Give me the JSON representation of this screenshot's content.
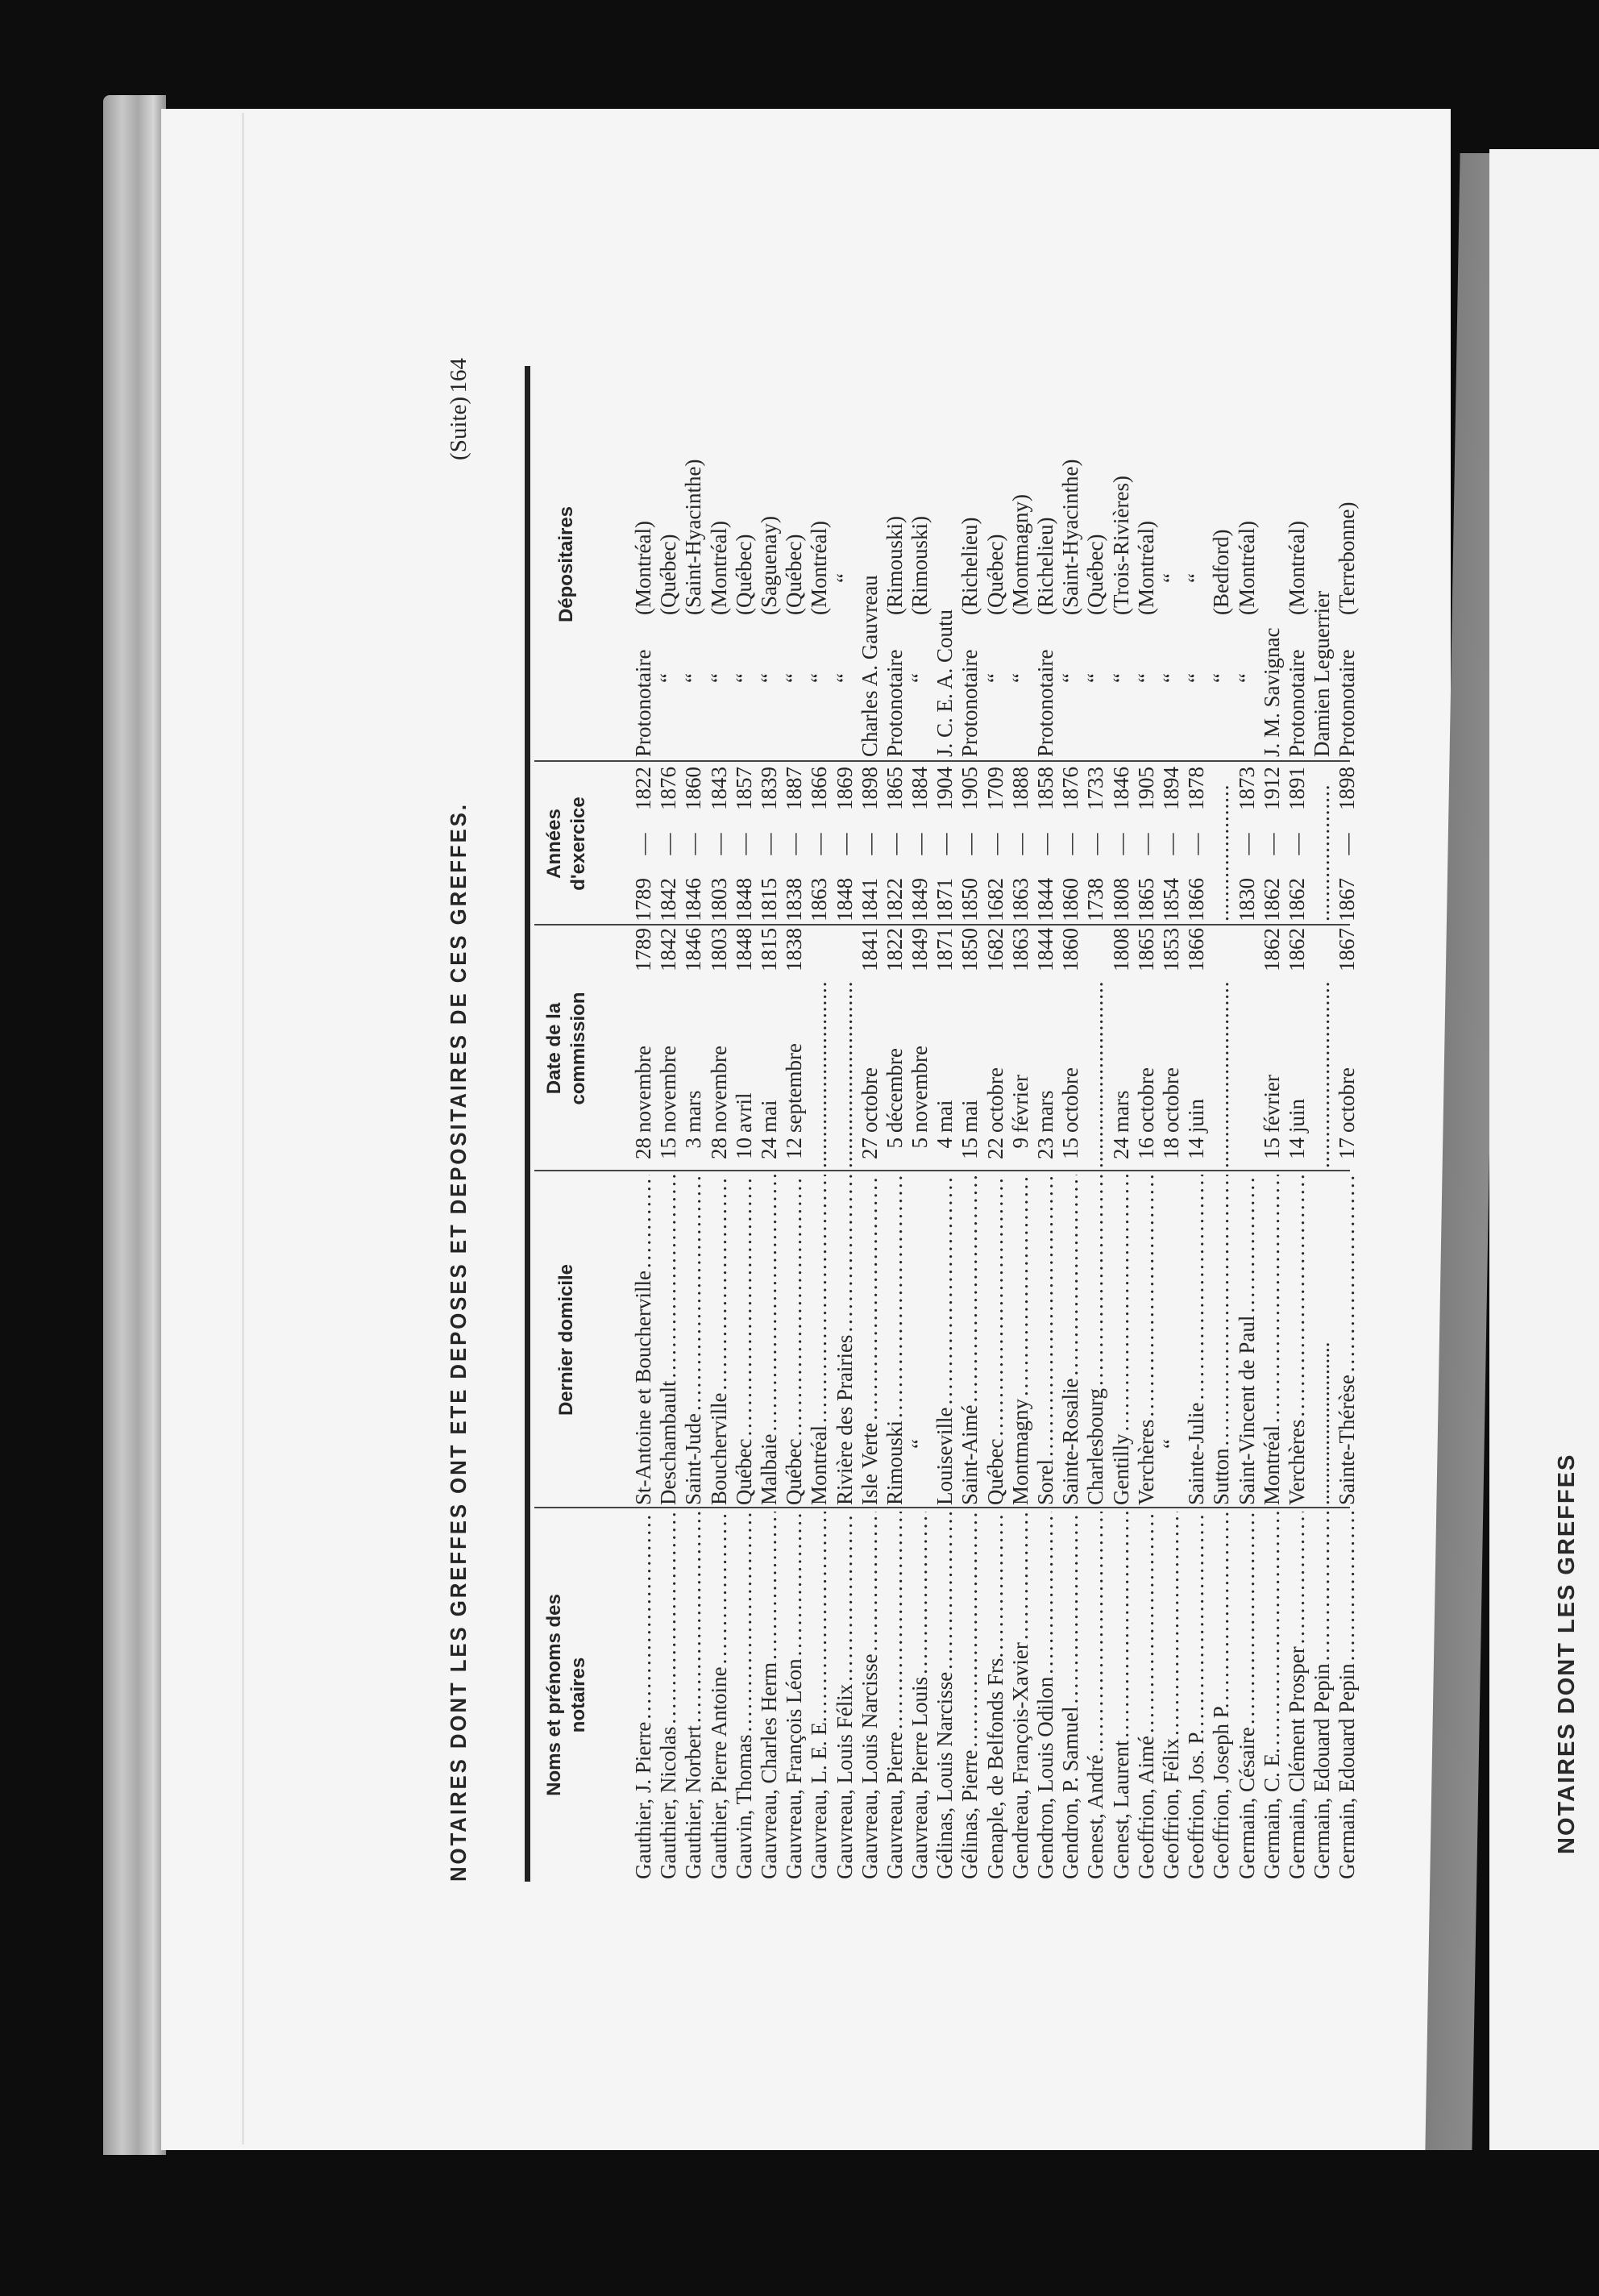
{
  "title": {
    "main": "NOTAIRES DONT LES GREFFES ONT ETE DEPOSES ET DEPOSITAIRES DE CES GREFFES.",
    "suite": "(Suite)",
    "page_number": "164"
  },
  "headers": {
    "name_line1": "Noms et prénoms des",
    "name_line2": "notaires",
    "domicile": "Dernier domicile",
    "date_line1": "Date de la",
    "date_line2": "commission",
    "years_line1": "Années",
    "years_line2": "d'exercice",
    "depositaires": "Dépositaires"
  },
  "rows": [
    {
      "name": "Gauthier, J. Pierre",
      "domicile": "St-Antoine et Boucherville",
      "day": "28",
      "month": "novembre",
      "year": "1789",
      "start": "1789",
      "end": "1822",
      "dep_a": "Protonotaire",
      "dep_b": "(Montréal)"
    },
    {
      "name": "Gauthier, Nicolas",
      "domicile": "Deschambault",
      "day": "15",
      "month": "novembre",
      "year": "1842",
      "start": "1842",
      "end": "1876",
      "dep_a": "“",
      "dep_b": "(Québec)"
    },
    {
      "name": "Gauthier, Norbert",
      "domicile": "Saint-Jude",
      "day": "3",
      "month": "mars",
      "year": "1846",
      "start": "1846",
      "end": "1860",
      "dep_a": "“",
      "dep_b": "(Saint-Hyacinthe)"
    },
    {
      "name": "Gauthier, Pierre Antoine",
      "domicile": "Boucherville",
      "day": "28",
      "month": "novembre",
      "year": "1803",
      "start": "1803",
      "end": "1843",
      "dep_a": "“",
      "dep_b": "(Montréal)"
    },
    {
      "name": "Gauvin, Thomas",
      "domicile": "Québec",
      "day": "10",
      "month": "avril",
      "year": "1848",
      "start": "1848",
      "end": "1857",
      "dep_a": "“",
      "dep_b": "(Québec)"
    },
    {
      "name": "Gauvreau, Charles Herm",
      "domicile": "Malbaie",
      "day": "24",
      "month": "mai",
      "year": "1815",
      "start": "1815",
      "end": "1839",
      "dep_a": "“",
      "dep_b": "(Saguenay)"
    },
    {
      "name": "Gauvreau, François Léon",
      "domicile": "Québec",
      "day": "12",
      "month": "septembre",
      "year": "1838",
      "start": "1838",
      "end": "1887",
      "dep_a": "“",
      "dep_b": "(Québec)"
    },
    {
      "name": "Gauvreau, L. E. E.",
      "domicile": "Montréal",
      "day": "",
      "month": "",
      "year": "",
      "dots": "..............................",
      "start": "1863",
      "end": "1866",
      "dep_a": "“",
      "dep_b": "(Montréal)"
    },
    {
      "name": "Gauvreau, Louis Félix",
      "domicile": "Rivière des Prairies",
      "day": "",
      "month": "",
      "year": "",
      "dots": "..............................",
      "start": "1848",
      "end": "1869",
      "dep_a": "“",
      "dep_b": "“"
    },
    {
      "name": "Gauvreau, Louis Narcisse",
      "domicile": "Isle Verte",
      "day": "27",
      "month": "octobre",
      "year": "1841",
      "start": "1841",
      "end": "1898",
      "dep_a": "Charles A. Gauvreau",
      "dep_b": ""
    },
    {
      "name": "Gauvreau, Pierre",
      "domicile": "Rimouski",
      "day": "5",
      "month": "décembre",
      "year": "1822",
      "start": "1822",
      "end": "1865",
      "dep_a": "Protonotaire",
      "dep_b": "(Rimouski)"
    },
    {
      "name": "Gauvreau, Pierre Louis",
      "domicile": "“",
      "day": "5",
      "month": "novembre",
      "year": "1849",
      "start": "1849",
      "end": "1884",
      "dep_a": "“",
      "dep_b": "(Rimouski)"
    },
    {
      "name": "Gélinas, Louis Narcisse",
      "domicile": "Louiseville",
      "day": "4",
      "month": "mai",
      "year": "1871",
      "start": "1871",
      "end": "1904",
      "dep_a": "J. C. E. A. Coutu",
      "dep_b": ""
    },
    {
      "name": "Gélinas, Pierre",
      "domicile": "Saint-Aimé",
      "day": "15",
      "month": "mai",
      "year": "1850",
      "start": "1850",
      "end": "1905",
      "dep_a": "Protonotaire",
      "dep_b": "(Richelieu)"
    },
    {
      "name": "Genaple, de Belfonds Frs.",
      "domicile": "Québec",
      "day": "22",
      "month": "octobre",
      "year": "1682",
      "start": "1682",
      "end": "1709",
      "dep_a": "“",
      "dep_b": "(Québec)"
    },
    {
      "name": "Gendreau, François-Xavier",
      "domicile": "Montmagny",
      "day": "9",
      "month": "février",
      "year": "1863",
      "start": "1863",
      "end": "1888",
      "dep_a": "“",
      "dep_b": "(Montmagny)"
    },
    {
      "name": "Gendron, Louis Odilon",
      "domicile": "Sorel",
      "day": "23",
      "month": "mars",
      "year": "1844",
      "start": "1844",
      "end": "1858",
      "dep_a": "Protonotaire",
      "dep_b": "(Richelieu)"
    },
    {
      "name": "Gendron, P. Samuel",
      "domicile": "Sainte-Rosalie",
      "day": "15",
      "month": "octobre",
      "year": "1860",
      "start": "1860",
      "end": "1876",
      "dep_a": "“",
      "dep_b": "(Saint-Hyacinthe)"
    },
    {
      "name": "Genest, André",
      "domicile": "Charlesbourg",
      "day": "",
      "month": "",
      "year": "",
      "dots": "..............................",
      "start": "1738",
      "end": "1733",
      "dep_a": "“",
      "dep_b": "(Québec)"
    },
    {
      "name": "Genest, Laurent",
      "domicile": "Gentilly",
      "day": "24",
      "month": "mars",
      "year": "1808",
      "start": "1808",
      "end": "1846",
      "dep_a": "“",
      "dep_b": "(Trois-Rivières)"
    },
    {
      "name": "Geoffrion, Aimé",
      "domicile": "Verchères",
      "day": "16",
      "month": "octobre",
      "year": "1865",
      "start": "1865",
      "end": "1905",
      "dep_a": "“",
      "dep_b": "(Montréal)"
    },
    {
      "name": "Geoffrion, Félix",
      "domicile": "“",
      "day": "18",
      "month": "octobre",
      "year": "1853",
      "start": "1854",
      "end": "1894",
      "dep_a": "“",
      "dep_b": "“"
    },
    {
      "name": "Geoffrion, Jos. P.",
      "domicile": "Sainte-Julie",
      "day": "14",
      "month": "juin",
      "year": "1866",
      "start": "1866",
      "end": "1878",
      "dep_a": "“",
      "dep_b": "“"
    },
    {
      "name": "Geoffrion, Joseph P.",
      "domicile": "Sutton",
      "day": "",
      "month": "",
      "year": "",
      "dots": "..............................",
      "start": "",
      "end": "",
      "years_dots": "......................",
      "dep_a": "“",
      "dep_b": "(Bedford)"
    },
    {
      "name": "Germain, Césaire",
      "domicile": "Saint-Vincent de Paul",
      "day": "",
      "month": "",
      "year": "",
      "start": "1830",
      "end": "1873",
      "dep_a": "“",
      "dep_b": "(Montréal)"
    },
    {
      "name": "Germain, C. E.",
      "domicile": "Montréal",
      "day": "15",
      "month": "février",
      "year": "1862",
      "start": "1862",
      "end": "1912",
      "dep_a": "J. M. Savignac",
      "dep_b": ""
    },
    {
      "name": "Germain, Clément Prosper",
      "domicile": "Verchères",
      "day": "14",
      "month": "juin",
      "year": "1862",
      "start": "1862",
      "end": "1891",
      "dep_a": "Protonotaire",
      "dep_b": "(Montréal)"
    },
    {
      "name": "Germain, Edouard Pepin",
      "domicile": "..............................",
      "day": "",
      "month": "",
      "year": "",
      "dots": "..............................",
      "start": "",
      "end": "",
      "years_dots": "......................",
      "dep_a": "Damien Leguerrier",
      "dep_b": ""
    },
    {
      "name": "Germain, Edouard Pepin",
      "domicile": "Sainte-Thérèse",
      "day": "17",
      "month": "octobre",
      "year": "1867",
      "start": "1867",
      "end": "1898",
      "dep_a": "Protonotaire",
      "dep_b": "(Terrebonne)"
    }
  ],
  "years_separator": "—",
  "right_page": {
    "partial_title": "NOTAIRES DONT LES GREFFES"
  },
  "colors": {
    "ink": "#262626",
    "paper": "#f5f5f5",
    "background": "#0d0d0d"
  }
}
